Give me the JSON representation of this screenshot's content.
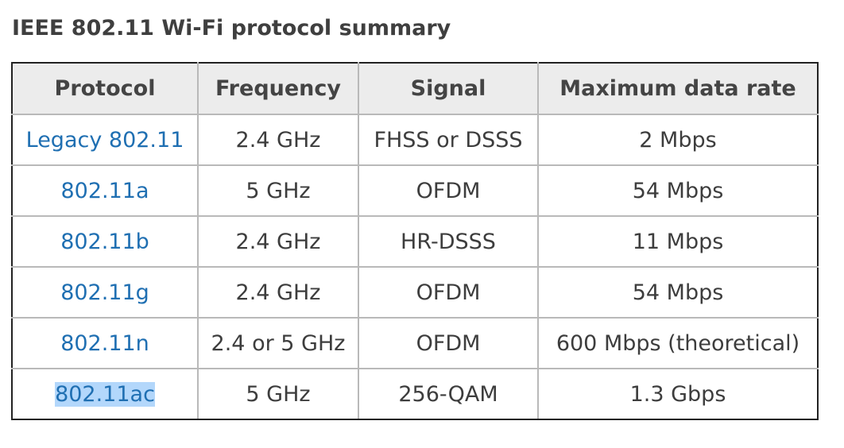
{
  "page": {
    "title": "IEEE 802.11 Wi-Fi protocol summary"
  },
  "table": {
    "headers": [
      "Protocol",
      "Frequency",
      "Signal",
      "Maximum data rate"
    ],
    "rows": [
      {
        "protocol": "Legacy 802.11",
        "frequency": "2.4 GHz",
        "signal": "FHSS or DSSS",
        "max_rate": "2 Mbps"
      },
      {
        "protocol": "802.11a",
        "frequency": "5 GHz",
        "signal": "OFDM",
        "max_rate": "54 Mbps"
      },
      {
        "protocol": "802.11b",
        "frequency": "2.4 GHz",
        "signal": "HR-DSSS",
        "max_rate": "11 Mbps"
      },
      {
        "protocol": "802.11g",
        "frequency": "2.4 GHz",
        "signal": "OFDM",
        "max_rate": "54 Mbps"
      },
      {
        "protocol": "802.11n",
        "frequency": "2.4 or 5 GHz",
        "signal": "OFDM",
        "max_rate": "600 Mbps (theoretical)"
      },
      {
        "protocol": "802.11ac",
        "frequency": "5 GHz",
        "signal": "256-QAM",
        "max_rate": "1.3 Gbps"
      }
    ]
  },
  "colors": {
    "link": "#1f6fb2",
    "header_bg": "#ececec",
    "selection": "#b3d7fb"
  }
}
